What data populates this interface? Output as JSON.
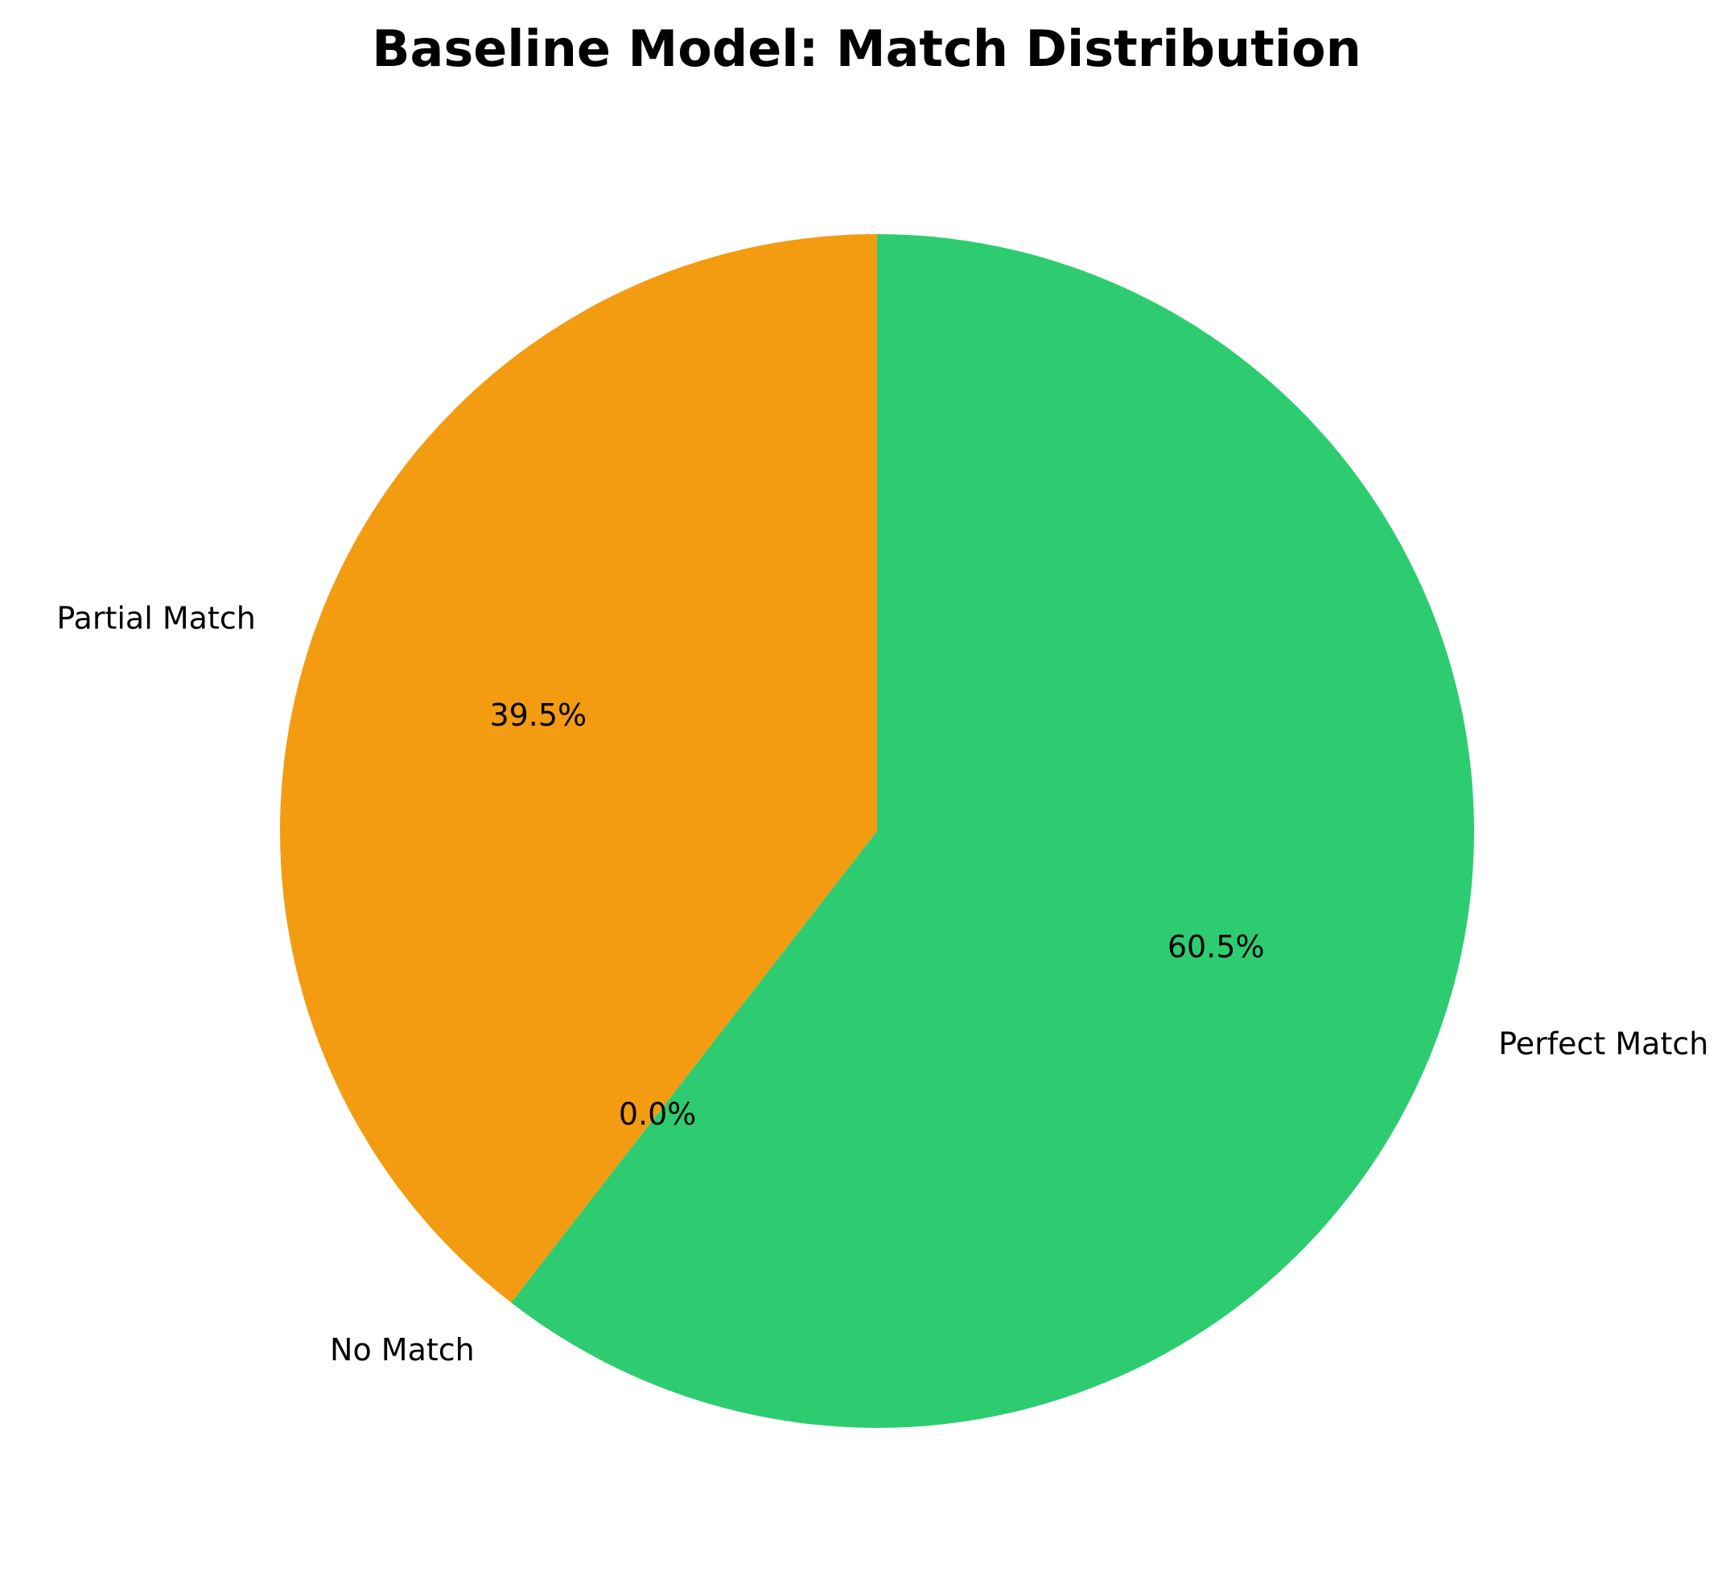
{
  "chart_data": {
    "type": "pie",
    "title": "Baseline Model: Match Distribution",
    "start_angle_deg": 90,
    "direction": "counterclockwise",
    "slices": [
      {
        "label": "Partial Match",
        "value": 39.5,
        "pct_label": "39.5%",
        "color": "#f39c12"
      },
      {
        "label": "No Match",
        "value": 0.0,
        "pct_label": "0.0%",
        "color": "#e74c3c"
      },
      {
        "label": "Perfect Match",
        "value": 60.5,
        "pct_label": "60.5%",
        "color": "#2ecc71"
      }
    ],
    "legend": "none"
  }
}
